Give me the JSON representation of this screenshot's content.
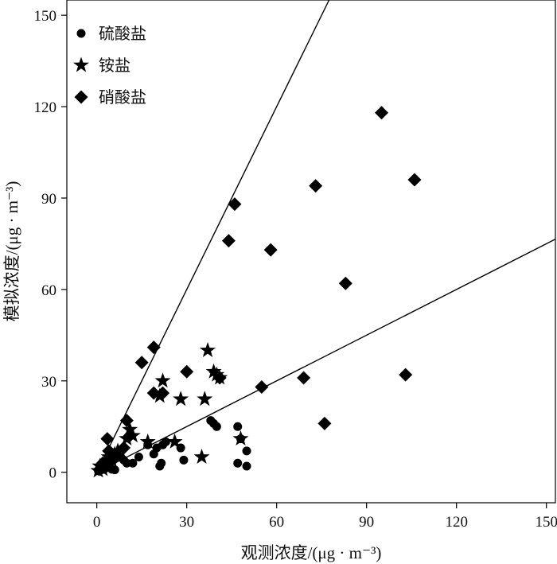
{
  "chart_data": {
    "type": "scatter",
    "xlabel": "观测浓度/(μg · m⁻³)",
    "ylabel": "模拟浓度/(μg · m⁻³)",
    "xlim": [
      -10,
      153
    ],
    "ylim": [
      -10,
      155
    ],
    "xticks": [
      0,
      30,
      60,
      90,
      120,
      150
    ],
    "yticks": [
      0,
      30,
      60,
      90,
      120,
      150
    ],
    "grid": false,
    "legend_position": "top-left",
    "reference_lines": [
      {
        "slope": 2.0
      },
      {
        "slope": 0.5
      }
    ],
    "series": [
      {
        "name": "硫酸盐",
        "marker": "circle",
        "color": "#000000",
        "points": [
          [
            0.5,
            0.5
          ],
          [
            1,
            1.5
          ],
          [
            1.5,
            0.8
          ],
          [
            2,
            2.5
          ],
          [
            2.5,
            1
          ],
          [
            3,
            3
          ],
          [
            4,
            2
          ],
          [
            5,
            1
          ],
          [
            5.5,
            4
          ],
          [
            6,
            0.8
          ],
          [
            8,
            5
          ],
          [
            9,
            4
          ],
          [
            10,
            3
          ],
          [
            12,
            3
          ],
          [
            14,
            5
          ],
          [
            17,
            9
          ],
          [
            19,
            6
          ],
          [
            20,
            8
          ],
          [
            21,
            2
          ],
          [
            21.5,
            3
          ],
          [
            22,
            9
          ],
          [
            23,
            10
          ],
          [
            28,
            8
          ],
          [
            29,
            4
          ],
          [
            38,
            17
          ],
          [
            39,
            16
          ],
          [
            40,
            15
          ],
          [
            47,
            3
          ],
          [
            47,
            15
          ],
          [
            48,
            11
          ],
          [
            50,
            7
          ],
          [
            50,
            2
          ]
        ]
      },
      {
        "name": "铵盐",
        "marker": "star",
        "color": "#000000",
        "points": [
          [
            0.5,
            0.5
          ],
          [
            1,
            2
          ],
          [
            2,
            1
          ],
          [
            3,
            3
          ],
          [
            4,
            5
          ],
          [
            5,
            4
          ],
          [
            6,
            6
          ],
          [
            7,
            7
          ],
          [
            10,
            11
          ],
          [
            11,
            14
          ],
          [
            12,
            12
          ],
          [
            17,
            10
          ],
          [
            21,
            25
          ],
          [
            22,
            30
          ],
          [
            26,
            10
          ],
          [
            28,
            24
          ],
          [
            35,
            5
          ],
          [
            36,
            24
          ],
          [
            37,
            40
          ],
          [
            39,
            33
          ],
          [
            40,
            32
          ],
          [
            41,
            31
          ],
          [
            48,
            11
          ]
        ]
      },
      {
        "name": "硝酸盐",
        "marker": "diamond",
        "color": "#000000",
        "points": [
          [
            1,
            1
          ],
          [
            2,
            3
          ],
          [
            3,
            2
          ],
          [
            3.5,
            11
          ],
          [
            4,
            7
          ],
          [
            5,
            4
          ],
          [
            6,
            5
          ],
          [
            9,
            8
          ],
          [
            10,
            17
          ],
          [
            11,
            12
          ],
          [
            15,
            36
          ],
          [
            19,
            41
          ],
          [
            19,
            26
          ],
          [
            22,
            26
          ],
          [
            30,
            33
          ],
          [
            41,
            31
          ],
          [
            44,
            76
          ],
          [
            46,
            88
          ],
          [
            55,
            28
          ],
          [
            58,
            73
          ],
          [
            69,
            31
          ],
          [
            73,
            94
          ],
          [
            76,
            16
          ],
          [
            83,
            62
          ],
          [
            95,
            118
          ],
          [
            103,
            32
          ],
          [
            106,
            96
          ]
        ]
      }
    ]
  }
}
